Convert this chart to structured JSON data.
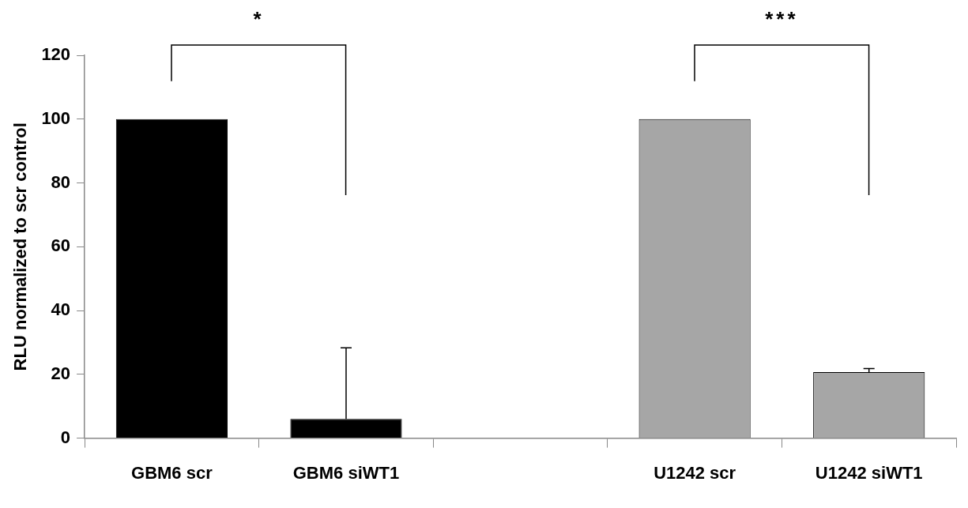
{
  "chart_data": {
    "type": "bar",
    "ylabel": "RLU normalized to scr control",
    "categories": [
      "GBM6 scr",
      "GBM6 siWT1",
      null,
      "U1242 scr",
      "U1242 siWT1"
    ],
    "values": [
      100,
      6,
      null,
      100,
      20.7
    ],
    "colors": [
      "#000000",
      "#000000",
      "#a6a6a6",
      "#a6a6a6",
      "#a6a6a6"
    ],
    "errors": [
      null,
      [
        6,
        28.3
      ],
      null,
      null,
      [
        20.7,
        21.8
      ]
    ],
    "ylim": [
      0,
      120
    ],
    "yticks": [
      0,
      20,
      40,
      60,
      80,
      100,
      120
    ],
    "annotations": [
      "*",
      "***"
    ],
    "grid": false,
    "legend": false
  }
}
